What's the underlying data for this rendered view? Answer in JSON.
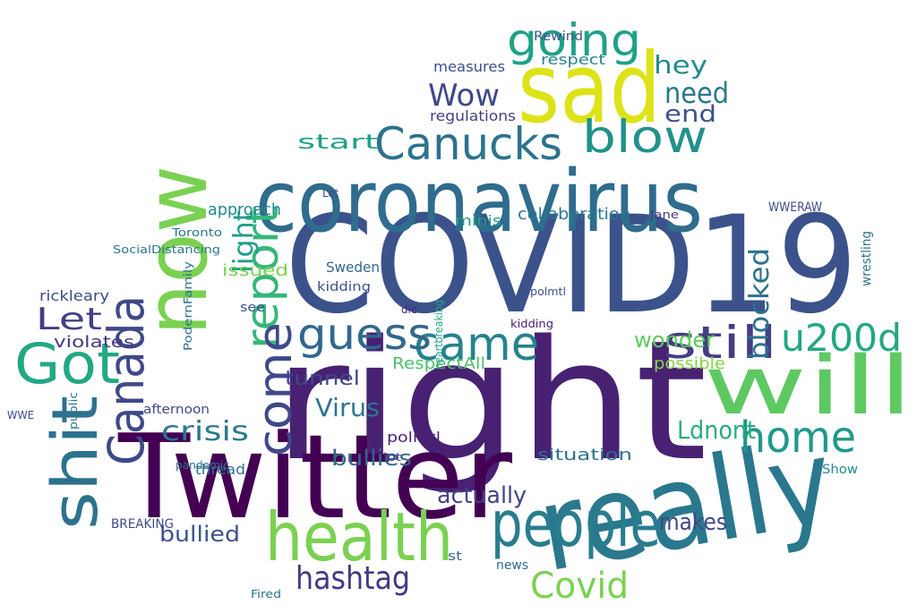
{
  "words": [
    {
      "text": "COVID19",
      "color": "#3b528b"
    },
    {
      "text": "right",
      "color": "#482173"
    },
    {
      "text": "Twitter",
      "color": "#440154"
    },
    {
      "text": "really",
      "color": "#2a788e"
    },
    {
      "text": "coronavirus",
      "color": "#2f6c8e"
    },
    {
      "text": "sad",
      "color": "#dde318"
    },
    {
      "text": "now",
      "color": "#7ad151"
    },
    {
      "text": "will",
      "color": "#5ec962"
    },
    {
      "text": "health",
      "color": "#7ad151"
    },
    {
      "text": "people",
      "color": "#287d8e"
    },
    {
      "text": "Canucks",
      "color": "#2c728e"
    },
    {
      "text": "blow",
      "color": "#21918c"
    },
    {
      "text": "going",
      "color": "#1fa187"
    },
    {
      "text": "Got",
      "color": "#22a884"
    },
    {
      "text": "Canada",
      "color": "#3e4989"
    },
    {
      "text": "report",
      "color": "#35b779"
    },
    {
      "text": "come",
      "color": "#3e4989"
    },
    {
      "text": "shit",
      "color": "#2c728e"
    },
    {
      "text": "came",
      "color": "#25838e"
    },
    {
      "text": "guess",
      "color": "#31688e"
    },
    {
      "text": "still",
      "color": "#433e85"
    },
    {
      "text": "home",
      "color": "#1f988b"
    },
    {
      "text": "u200d",
      "color": "#22a884"
    },
    {
      "text": "Covid",
      "color": "#7ad151"
    },
    {
      "text": "hashtag",
      "color": "#443983"
    },
    {
      "text": "Wow",
      "color": "#3e4989"
    },
    {
      "text": "Let",
      "color": "#433e85"
    },
    {
      "text": "need",
      "color": "#2a788e"
    },
    {
      "text": "hey",
      "color": "#228c8d"
    },
    {
      "text": "end",
      "color": "#3b528b"
    },
    {
      "text": "blocked",
      "color": "#2c728e"
    },
    {
      "text": "light",
      "color": "#1f9e89"
    },
    {
      "text": "wonder",
      "color": "#5ec962"
    },
    {
      "text": "Ldnont",
      "color": "#28ae80"
    },
    {
      "text": "Virus",
      "color": "#2a788e"
    },
    {
      "text": "crisis",
      "color": "#2a788e"
    },
    {
      "text": "bullies",
      "color": "#31688e"
    },
    {
      "text": "bullied",
      "color": "#3b528b"
    },
    {
      "text": "actually",
      "color": "#414487"
    },
    {
      "text": "makes",
      "color": "#3e4989"
    },
    {
      "text": "start",
      "color": "#1fa187"
    },
    {
      "text": "tunnel",
      "color": "#3e4989"
    },
    {
      "text": "situation",
      "color": "#2c728e"
    },
    {
      "text": "possible",
      "color": "#86d549"
    },
    {
      "text": "approach",
      "color": "#23898e"
    },
    {
      "text": "collaboration",
      "color": "#2a788e"
    },
    {
      "text": "measures",
      "color": "#3b528b"
    },
    {
      "text": "regulations",
      "color": "#433e85"
    },
    {
      "text": "respect",
      "color": "#25858e"
    },
    {
      "text": "RespectAll",
      "color": "#4ac16d"
    },
    {
      "text": "issued",
      "color": "#7ad151"
    },
    {
      "text": "violates",
      "color": "#443983"
    },
    {
      "text": "rickleary",
      "color": "#3e4989"
    },
    {
      "text": "Sweden",
      "color": "#31688e"
    },
    {
      "text": "thread",
      "color": "#2c728e"
    },
    {
      "text": "polmtl",
      "color": "#482475"
    },
    {
      "text": "kidding",
      "color": "#3b528b"
    },
    {
      "text": "WWERAW",
      "color": "#3e4989"
    },
    {
      "text": "wrestling",
      "color": "#2c728e"
    },
    {
      "text": "pandemic",
      "color": "#2c728e"
    },
    {
      "text": "BREAKING",
      "color": "#3e4989"
    },
    {
      "text": "Toronto",
      "color": "#2a788e"
    },
    {
      "text": "Fired",
      "color": "#2c728e"
    },
    {
      "text": "minis",
      "color": "#1f9e89"
    },
    {
      "text": "afternoon",
      "color": "#3e4989"
    },
    {
      "text": "Show",
      "color": "#23898e"
    },
    {
      "text": "public",
      "color": "#2a788e"
    },
    {
      "text": "Rewind",
      "color": "#3b528b"
    },
    {
      "text": "die",
      "color": "#482878"
    },
    {
      "text": "lot",
      "color": "#46307e"
    },
    {
      "text": "see",
      "color": "#3b528b"
    },
    {
      "text": "news",
      "color": "#31688e"
    },
    {
      "text": "Jane",
      "color": "#443983"
    },
    {
      "text": "st",
      "color": "#31688e"
    },
    {
      "text": "WWE",
      "color": "#3e4989"
    },
    {
      "text": "SocialDistancing",
      "color": "#2a788e"
    },
    {
      "text": "heartbreaking",
      "color": "#22a884"
    },
    {
      "text": "PodernFamily",
      "color": "#2c728e"
    },
    {
      "text": "kidding",
      "color": "#482173"
    },
    {
      "text": "Let",
      "color": "#3e4989"
    },
    {
      "text": "polmtl",
      "color": "#3b528b"
    }
  ]
}
